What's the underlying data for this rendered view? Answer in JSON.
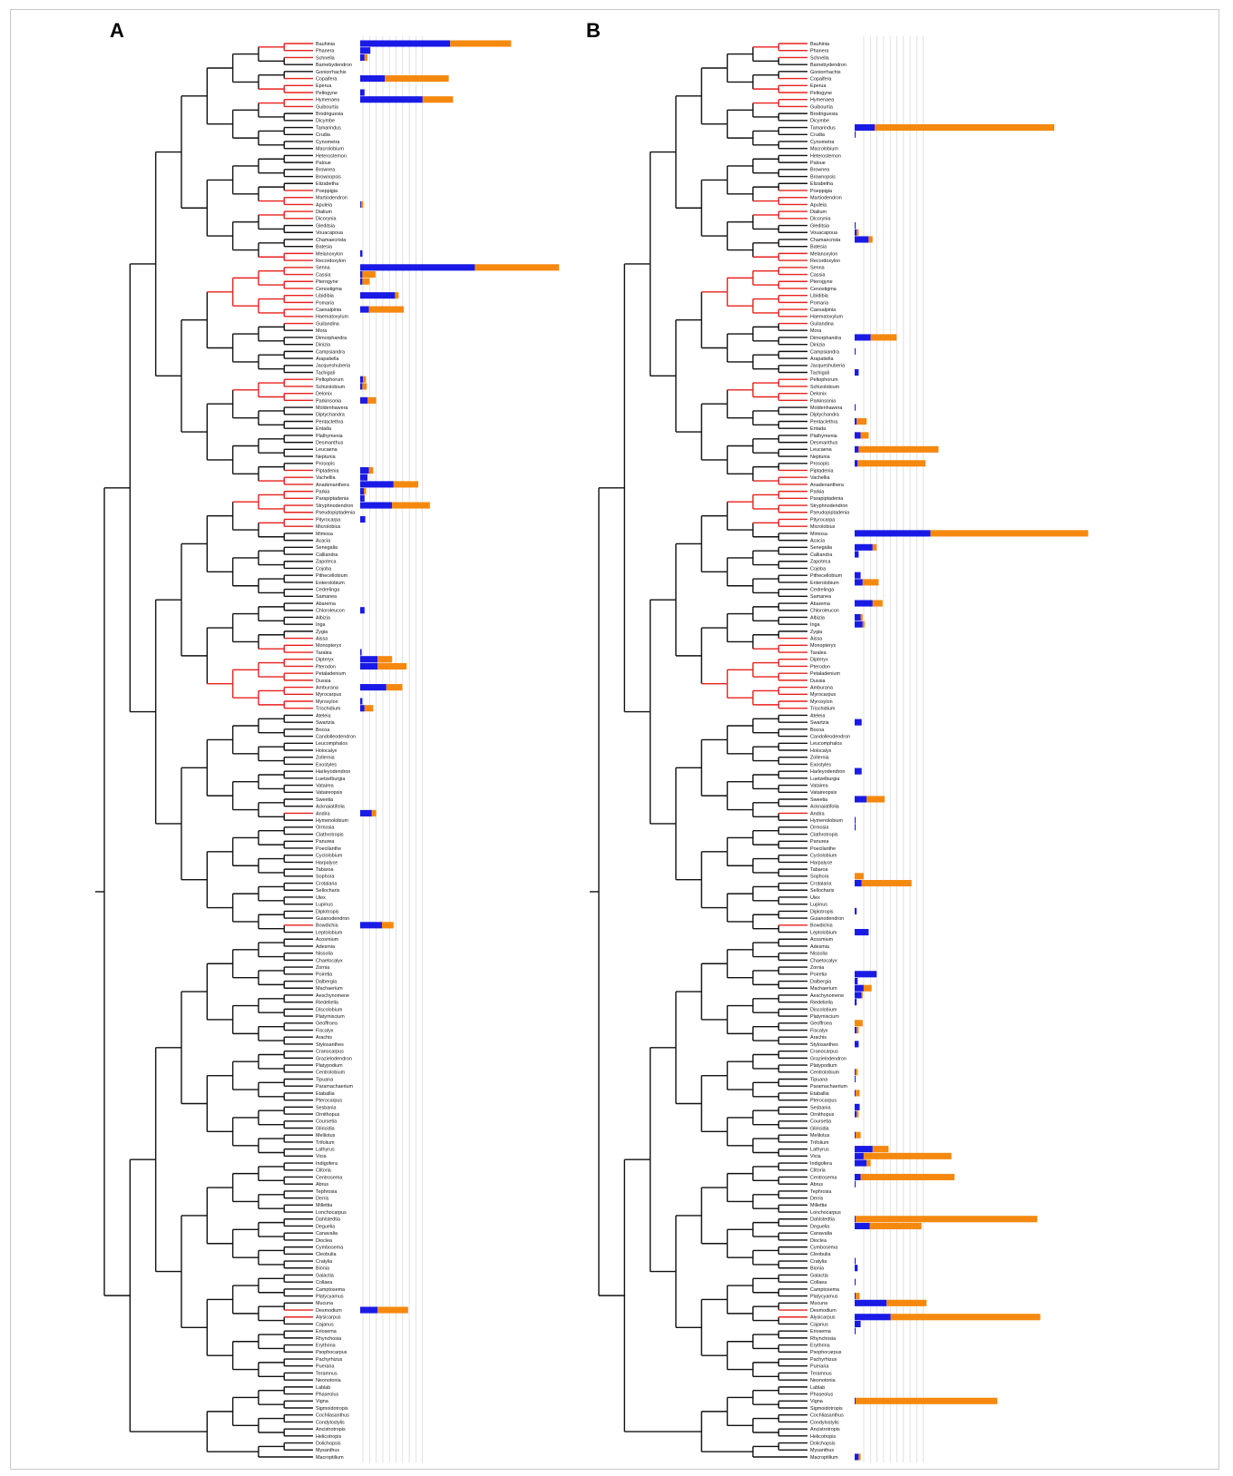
{
  "panel_labels": {
    "a": "A",
    "b": "B"
  },
  "colors": {
    "tree": "#111111",
    "highlight": "#e8201c",
    "bar_primary": "#1a1ae6",
    "bar_secondary": "#f5890f",
    "grid": "#d6d6d6"
  },
  "chart_data": [
    {
      "type": "bar",
      "panel": "A",
      "orientation": "horizontal-stacked",
      "grid": true,
      "x_ticks": [
        "",
        "",
        "",
        "",
        "",
        "",
        "",
        "",
        "",
        ""
      ],
      "xlim": [
        0,
        10
      ],
      "taxa": [
        "Bauhinia",
        "Phanera",
        "Schnella",
        "Barnebydendron",
        "Goniorrhachis",
        "Copaifera",
        "Eperua",
        "Peltogyne",
        "Hymenaea",
        "Guibourtia",
        "Brodriguesia",
        "Dicymbe",
        "Tamarindus",
        "Crudia",
        "Cynometra",
        "Macrolobium",
        "Heterostemon",
        "Paloue",
        "Brownea",
        "Brownopsis",
        "Elizabetha",
        "Poeppigia",
        "Martiodendron",
        "Apuleia",
        "Dialium",
        "Dicorynia",
        "Gleditsia",
        "Vouacapoua",
        "Chamaecrista",
        "Batesia",
        "Melanoxylon",
        "Recordoxylon",
        "Senna",
        "Cassia",
        "Pterogyne",
        "Cenostigma",
        "Libidibia",
        "Pomaria",
        "Caesalpinia",
        "Haematoxylum",
        "Guilandina",
        "Mora",
        "Dimorphandra",
        "Dinizia",
        "Campsiandra",
        "Arapatiella",
        "Jacqueshuberia",
        "Tachigali",
        "Peltophorum",
        "Schizolobium",
        "Delonix",
        "Parkinsonia",
        "Moldenhawera",
        "Diptychandra",
        "Pentaclethra",
        "Entada",
        "Plathymenia",
        "Desmanthus",
        "Leucaena",
        "Neptunia",
        "Prosopis",
        "Piptadenia",
        "Vachellia",
        "Anadenanthera",
        "Parkia",
        "Parapiptadenia",
        "Stryphnodendron",
        "Pseudopiptadenia",
        "Pityrocarpa",
        "Microlobius",
        "Mimosa",
        "Acacia",
        "Senegalia",
        "Calliandra",
        "Zapoteca",
        "Cojoba",
        "Pithecellobium",
        "Enterolobium",
        "Cedrelinga",
        "Samanea",
        "Abarema",
        "Chloroleucon",
        "Albizia",
        "Inga",
        "Zygia",
        "Aissa",
        "Monopteryx",
        "Taralea",
        "Dipteryx",
        "Pterodon",
        "Petaladenium",
        "Dussia",
        "Amburana",
        "Myrocarpus",
        "Myroxylon",
        "Trischidium",
        "Ateleia",
        "Swartzia",
        "Bocoa",
        "Candolleodendron",
        "Leucomphalos",
        "Holocalyx",
        "Zollernia",
        "Exostyles",
        "Harleyodendron",
        "Luetzelburgia",
        "Vataireа",
        "Vatairеopsis",
        "Sweetia",
        "Acknaiatifolia",
        "Andira",
        "Hymenolobium",
        "Ormosia",
        "Clathrotropis",
        "Panurea",
        "Poecilanthe",
        "Cyclolobium",
        "Harpalyce",
        "Tabaroa",
        "Sophora",
        "Crotalaria",
        "Sellocharis",
        "Ulex",
        "Lupinus",
        "Diplotropis",
        "Guianodendron",
        "Bowdichia",
        "Leptolobium",
        "Acosmium",
        "Adesmia",
        "Nissolia",
        "Chaetocalyx",
        "Zornia",
        "Poiretia",
        "Dalbergia",
        "Machaerium",
        "Aeschynomene",
        "Riedeliella",
        "Discolobium",
        "Platymiscium",
        "Geoffroea",
        "Fiscalyx",
        "Arachis",
        "Stylosanthes",
        "Cranocarpus",
        "Grazielodendron",
        "Platypodium",
        "Centrolobium",
        "Tipuana",
        "Paramachaerium",
        "Etaballia",
        "Pterocarpus",
        "Sesbania",
        "Ornithopus",
        "Coursetia",
        "Gliricidia",
        "Melilotus",
        "Trifolium",
        "Lathyrus",
        "Vicia",
        "Indigofera",
        "Clitoria",
        "Centrosema",
        "Abrus",
        "Tephrosia",
        "Derris",
        "Millettia",
        "Lonchocarpus",
        "Dahlstedtia",
        "Deguelia",
        "Canavalia",
        "Dioclea",
        "Cymbosema",
        "Cleobulia",
        "Cratylia",
        "Bionia",
        "Galactia",
        "Collaea",
        "Camptosema",
        "Platycyamus",
        "Mucuna",
        "Desmodium",
        "Alysicarpus",
        "Cajanus",
        "Eriosema",
        "Rhynchosia",
        "Erythrina",
        "Psophocarpus",
        "Pachyrhizus",
        "Pueraria",
        "Teramnus",
        "Neonotonia",
        "Lablab",
        "Phaseolus",
        "Vigna",
        "Sigmoidotropis",
        "Cochliasanthus",
        "Condylostylis",
        "Ancistrotropis",
        "Helicotropis",
        "Dolichopsis",
        "Mysanthus",
        "Macroptilium"
      ],
      "highlighted_clade_indices": [
        [
          0,
          2
        ],
        [
          5,
          9
        ],
        [
          21,
          25
        ],
        [
          30,
          40
        ],
        [
          48,
          51
        ],
        [
          61,
          69
        ],
        [
          85,
          95
        ],
        [
          110,
          110
        ],
        [
          126,
          126
        ],
        [
          181,
          182
        ]
      ],
      "series": [
        {
          "values": {
            "0": 6.2,
            "1": 0.7,
            "2": 0.3,
            "5": 1.7,
            "7": 0.3,
            "8": 4.3,
            "23": 0.06,
            "30": 0.15,
            "32": 7.9,
            "33": 0.15,
            "34": 0.15,
            "36": 2.4,
            "38": 0.6,
            "48": 0.2,
            "49": 0.15,
            "51": 0.5,
            "61": 0.6,
            "62": 0.5,
            "63": 2.3,
            "64": 0.25,
            "65": 0.3,
            "66": 2.2,
            "68": 0.35,
            "81": 0.3,
            "87": 0.1,
            "88": 1.2,
            "89": 1.2,
            "92": 1.8,
            "94": 0.15,
            "95": 0.3,
            "110": 0.8,
            "126": 1.5,
            "181": 1.2
          }
        },
        {
          "values": {
            "0": 4.2,
            "2": 0.2,
            "5": 4.4,
            "8": 2.1,
            "23": 0.15,
            "30": 0.0,
            "32": 5.8,
            "33": 0.9,
            "34": 0.5,
            "36": 0.25,
            "38": 2.4,
            "48": 0.2,
            "49": 0.3,
            "51": 0.6,
            "61": 0.3,
            "63": 1.7,
            "64": 0.15,
            "66": 2.6,
            "88": 1.0,
            "89": 2.0,
            "92": 1.1,
            "94": 0.0,
            "95": 0.6,
            "110": 0.3,
            "126": 0.8,
            "181": 2.1
          }
        }
      ]
    },
    {
      "type": "bar",
      "panel": "B",
      "orientation": "horizontal-stacked",
      "grid": true,
      "x_ticks": [
        "",
        "",
        "",
        "",
        "",
        "",
        "",
        "",
        "",
        ""
      ],
      "xlim": [
        0,
        10
      ],
      "taxa_ref": "A",
      "highlighted_clade_indices": [
        [
          0,
          2
        ],
        [
          5,
          9
        ],
        [
          21,
          25
        ],
        [
          30,
          40
        ],
        [
          48,
          51
        ],
        [
          61,
          69
        ],
        [
          85,
          95
        ],
        [
          110,
          110
        ],
        [
          126,
          126
        ],
        [
          181,
          182
        ]
      ],
      "series": [
        {
          "values": {
            "12": 1.0,
            "13": 0.05,
            "26": 0.05,
            "27": 0.1,
            "28": 0.7,
            "42": 0.8,
            "44": 0.05,
            "47": 0.2,
            "52": 0.05,
            "54": 0.1,
            "56": 0.3,
            "58": 0.2,
            "60": 0.15,
            "70": 3.8,
            "72": 0.9,
            "73": 0.2,
            "76": 0.3,
            "77": 0.4,
            "80": 0.9,
            "82": 0.3,
            "83": 0.4,
            "97": 0.35,
            "104": 0.35,
            "108": 0.6,
            "111": 0.05,
            "112": 0.05,
            "119": 0.0,
            "120": 0.35,
            "124": 0.1,
            "127": 0.7,
            "133": 1.1,
            "134": 0.15,
            "135": 0.45,
            "136": 0.35,
            "137": 0.1,
            "140": 0.0,
            "141": 0.1,
            "143": 0.2,
            "147": 0.05,
            "148": 0.05,
            "150": 0.05,
            "152": 0.25,
            "153": 0.1,
            "156": 0.05,
            "158": 0.9,
            "159": 0.45,
            "160": 0.6,
            "162": 0.3,
            "163": 0.05,
            "168": 0.05,
            "169": 0.75,
            "174": 0.05,
            "175": 0.15,
            "177": 0.05,
            "179": 0.05,
            "180": 1.6,
            "182": 1.8,
            "183": 0.3,
            "184": 0.05,
            "194": 0.05,
            "202": 0.2
          }
        },
        {
          "values": {
            "12": 9.0,
            "26": 0.0,
            "27": 0.1,
            "28": 0.2,
            "42": 1.3,
            "54": 0.5,
            "56": 0.4,
            "58": 4.0,
            "60": 3.4,
            "70": 7.9,
            "72": 0.2,
            "77": 0.8,
            "80": 0.5,
            "82": 0.1,
            "83": 0.1,
            "104": 0.0,
            "108": 0.9,
            "119": 0.45,
            "120": 2.5,
            "135": 0.4,
            "136": 0.05,
            "140": 0.4,
            "141": 0.1,
            "147": 0.1,
            "150": 0.2,
            "153": 0.1,
            "156": 0.25,
            "158": 0.8,
            "159": 4.4,
            "160": 0.2,
            "162": 4.7,
            "168": 9.1,
            "169": 2.6,
            "179": 0.2,
            "180": 2.0,
            "182": 7.5,
            "194": 7.1,
            "202": 0.1
          }
        }
      ]
    }
  ]
}
